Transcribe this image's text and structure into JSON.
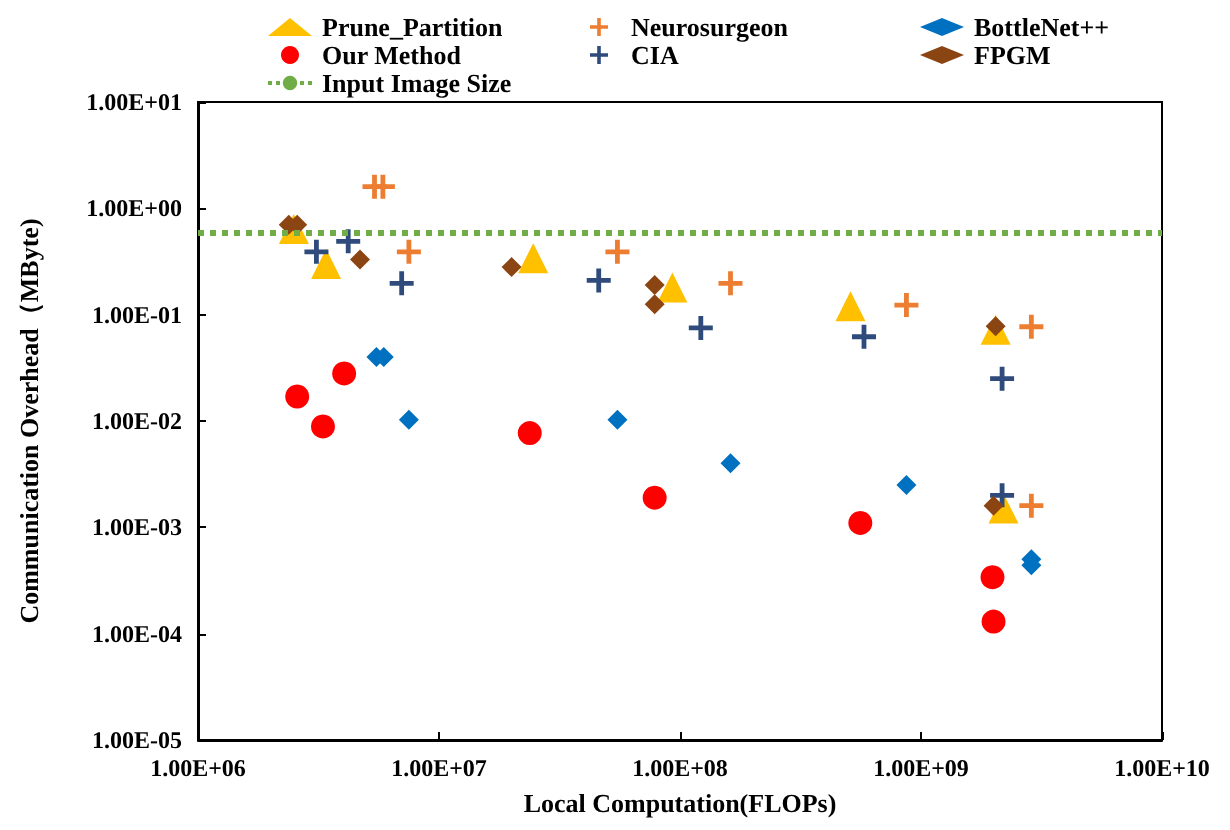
{
  "chart_data": {
    "type": "scatter",
    "xlabel": "Local Computation(FLOPs)",
    "ylabel": "Communication Overhead（MByte)",
    "log": "xy",
    "grid": false,
    "legend": "top",
    "xlim": [
      1000000,
      10000000000
    ],
    "ylim": [
      1e-05,
      10
    ],
    "xticks": [
      {
        "value": 1000000,
        "label": "1.00E+06"
      },
      {
        "value": 10000000,
        "label": "1.00E+07"
      },
      {
        "value": 100000000,
        "label": "1.00E+08"
      },
      {
        "value": 1000000000,
        "label": "1.00E+09"
      },
      {
        "value": 10000000000,
        "label": "1.00E+10"
      }
    ],
    "yticks": [
      {
        "value": 1e-05,
        "label": "1.00E-05"
      },
      {
        "value": 0.0001,
        "label": "1.00E-04"
      },
      {
        "value": 0.001,
        "label": "1.00E-03"
      },
      {
        "value": 0.01,
        "label": "1.00E-02"
      },
      {
        "value": 0.1,
        "label": "1.00E-01"
      },
      {
        "value": 1,
        "label": "1.00E+00"
      },
      {
        "value": 10,
        "label": "1.00E+01"
      }
    ],
    "ref_lines": [
      {
        "axis": "y",
        "value": 0.6,
        "label": "Input Image Size",
        "color": "#70ad47",
        "line_style": "dotted"
      }
    ],
    "series": [
      {
        "name": "Prune_Partition",
        "color": "#ffc000",
        "marker": "triangle",
        "x": [
          2500000,
          3400000,
          24600000,
          93000000,
          510000000,
          2040000000,
          2200000000
        ],
        "values": [
          0.64,
          0.3,
          0.34,
          0.18,
          0.12,
          0.072,
          0.0015
        ]
      },
      {
        "name": "Our Method",
        "color": "#ff0000",
        "marker": "circle",
        "x": [
          2580000,
          3300000,
          4040000,
          23800000,
          78500000,
          560000000,
          1980000000,
          2000000000
        ],
        "values": [
          0.017,
          0.0089,
          0.028,
          0.0077,
          0.0019,
          0.0011,
          0.00034,
          0.00013
        ]
      },
      {
        "name": "Neurosurgeon",
        "color": "#ed7d31",
        "marker": "cross",
        "x": [
          5400000,
          5850000,
          7500000,
          55000000,
          162000000,
          870000000,
          2870000000,
          2870000000
        ],
        "values": [
          1.6,
          1.6,
          0.39,
          0.39,
          0.197,
          0.123,
          0.077,
          0.0016
        ]
      },
      {
        "name": "CIA",
        "color": "#2f4b7c",
        "marker": "cross",
        "x": [
          3100000,
          4200000,
          7000000,
          46000000,
          122000000,
          580000000,
          2170000000,
          2170000000
        ],
        "values": [
          0.39,
          0.49,
          0.197,
          0.21,
          0.075,
          0.062,
          0.025,
          0.002
        ]
      },
      {
        "name": "BottleNet++",
        "color": "#0070c0",
        "marker": "diamond",
        "x": [
          5500000,
          5900000,
          7500000,
          55000000,
          162000000,
          870000000,
          2870000000,
          2870000000
        ],
        "values": [
          0.04,
          0.04,
          0.0103,
          0.0103,
          0.004,
          0.0025,
          0.0005,
          0.00044
        ]
      },
      {
        "name": "FPGM",
        "color": "#8b4513",
        "marker": "diamond",
        "x": [
          2380000,
          2580000,
          4700000,
          20000000,
          78500000,
          78500000,
          2040000000,
          2000000000
        ],
        "values": [
          0.7,
          0.7,
          0.33,
          0.28,
          0.19,
          0.125,
          0.078,
          0.0016
        ]
      }
    ]
  }
}
